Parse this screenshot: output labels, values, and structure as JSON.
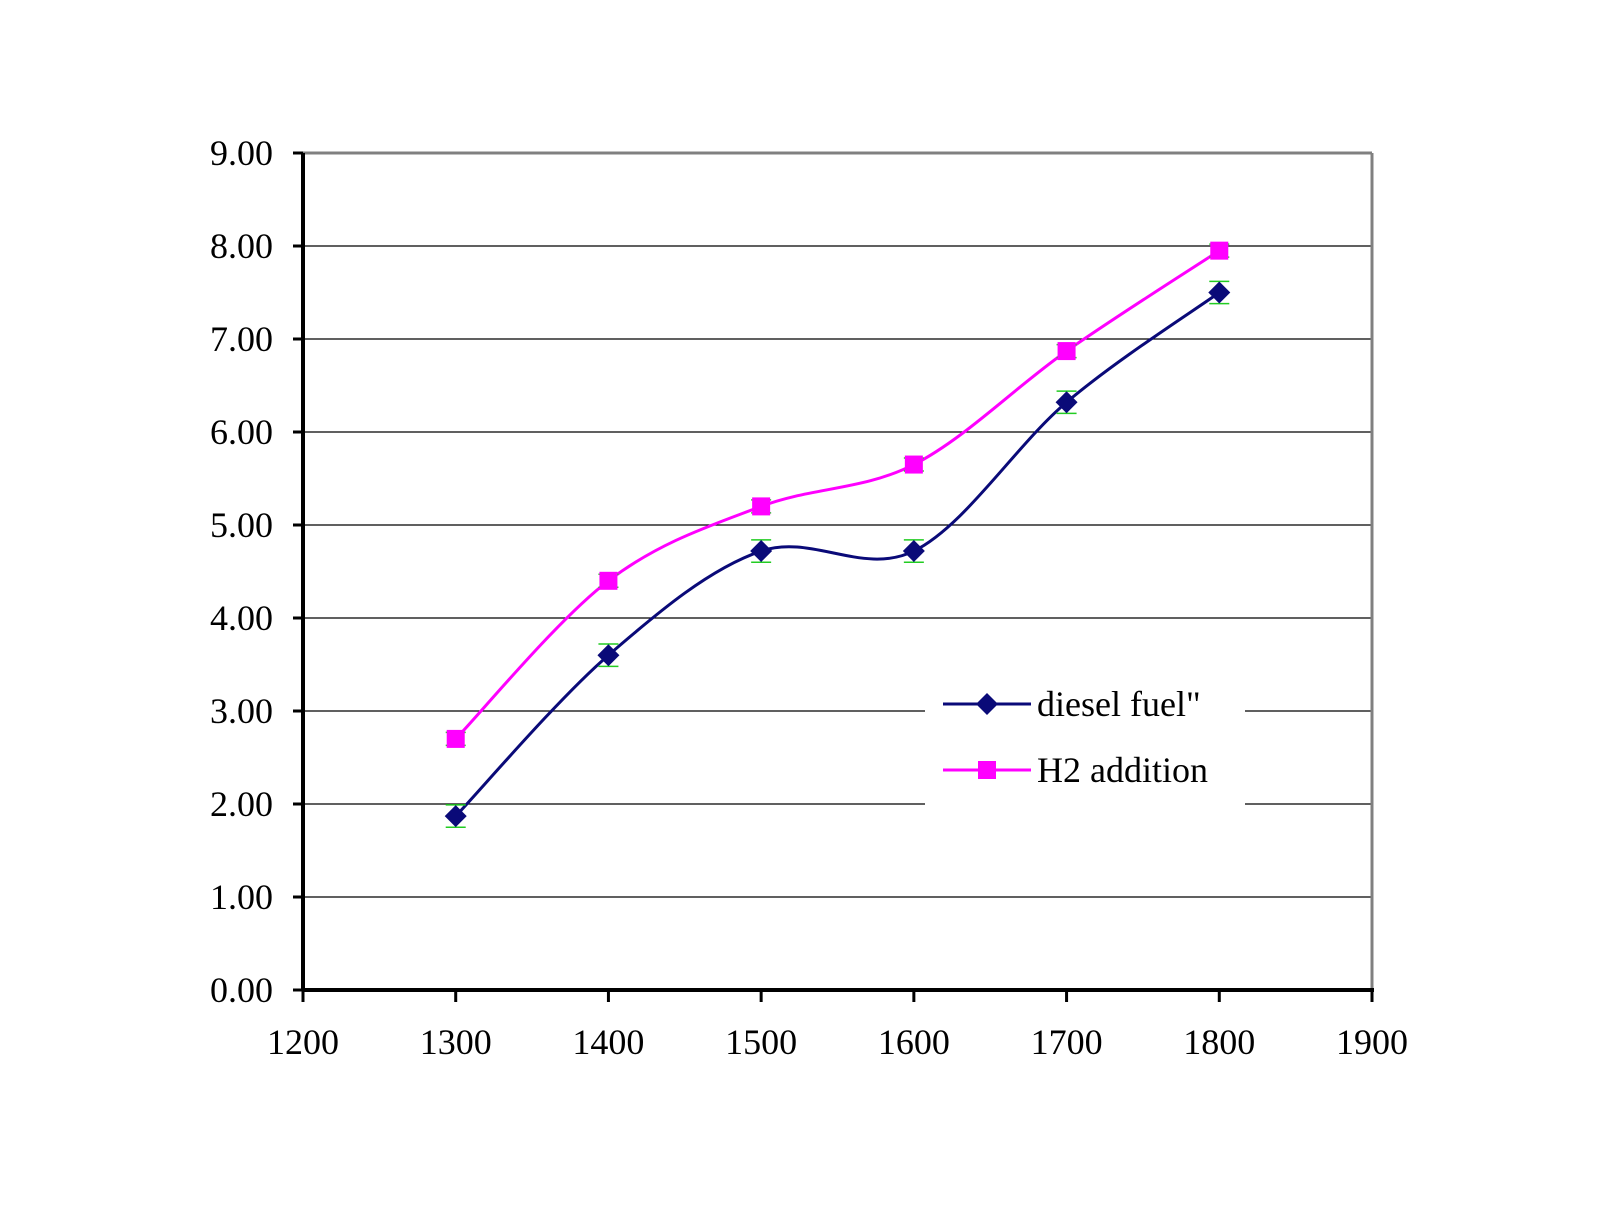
{
  "chart_data": {
    "type": "line",
    "title": "",
    "xlabel": "",
    "ylabel": "",
    "x": [
      1300,
      1400,
      1500,
      1600,
      1700,
      1800
    ],
    "xlim": [
      1200,
      1900
    ],
    "ylim": [
      0,
      9
    ],
    "x_ticks": [
      "1200",
      "1300",
      "1400",
      "1500",
      "1600",
      "1700",
      "1800",
      "1900"
    ],
    "y_ticks": [
      "0.00",
      "1.00",
      "2.00",
      "3.00",
      "4.00",
      "5.00",
      "6.00",
      "7.00",
      "8.00",
      "9.00"
    ],
    "grid": "horizontal",
    "legend_position": "center-right",
    "series": [
      {
        "name": "diesel fuel\"",
        "values": [
          1.87,
          3.6,
          4.72,
          4.72,
          6.32,
          7.5
        ],
        "color": "#0a0a78",
        "marker": "diamond",
        "error": 0.12
      },
      {
        "name": "H2 addition",
        "values": [
          2.7,
          4.4,
          5.2,
          5.65,
          6.87,
          7.95
        ],
        "color": "#ff00ff",
        "marker": "square",
        "error": 0.07
      }
    ],
    "error_bar_color": "#22cc22"
  }
}
